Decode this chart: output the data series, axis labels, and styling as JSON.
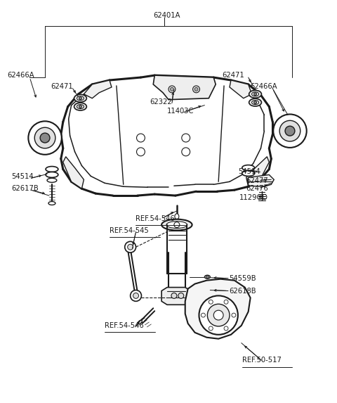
{
  "bg_color": "#ffffff",
  "lc": "#1a1a1a",
  "figsize": [
    4.8,
    5.73
  ],
  "dpi": 100,
  "labels": {
    "62401A": [
      218,
      14,
      "left"
    ],
    "62466A_L": [
      8,
      100,
      "left"
    ],
    "62471_L": [
      70,
      116,
      "left"
    ],
    "62471_R": [
      317,
      100,
      "left"
    ],
    "62466A_R": [
      358,
      116,
      "left"
    ],
    "62322": [
      213,
      138,
      "left"
    ],
    "11403C": [
      238,
      151,
      "left"
    ],
    "54514_L": [
      14,
      246,
      "left"
    ],
    "62617B": [
      14,
      263,
      "left"
    ],
    "54514_R": [
      340,
      238,
      "left"
    ],
    "62477": [
      352,
      252,
      "left"
    ],
    "62476": [
      352,
      263,
      "left"
    ],
    "1129GD": [
      342,
      276,
      "left"
    ],
    "54559B": [
      327,
      392,
      "left"
    ],
    "62618B": [
      327,
      410,
      "left"
    ]
  },
  "underline_labels": {
    "REF.54-546_top": [
      192,
      306,
      "left"
    ],
    "REF.54-545": [
      155,
      323,
      "left"
    ],
    "REF.54-546_bot": [
      148,
      460,
      "left"
    ],
    "REF.50-517": [
      346,
      510,
      "left"
    ]
  },
  "fontsize": 7.2,
  "gray": "#555555"
}
